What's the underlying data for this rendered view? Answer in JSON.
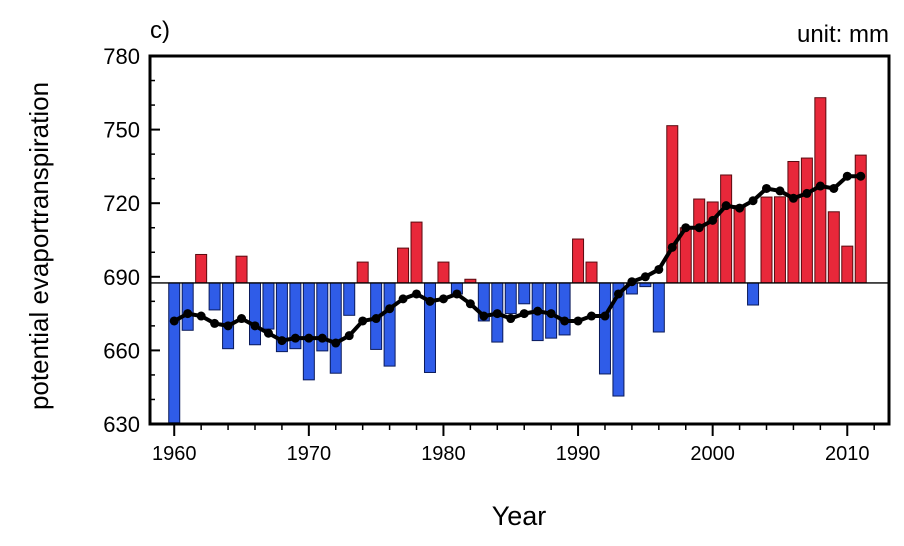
{
  "chart_data": {
    "type": "bar",
    "panel_label": "c)",
    "unit_label": "unit: mm",
    "xlabel": "Year",
    "ylabel": "potential evaportranspiration",
    "xlim": [
      1958.2,
      2013.1
    ],
    "ylim": [
      630,
      780
    ],
    "yticks": [
      630,
      660,
      690,
      720,
      750,
      780
    ],
    "xticks": [
      1960,
      1970,
      1980,
      1990,
      2000,
      2010
    ],
    "grid": false,
    "baseline": 687.5,
    "above_color": "#e8283a",
    "below_color": "#2f5ce8",
    "years": [
      1960,
      1961,
      1962,
      1963,
      1964,
      1965,
      1966,
      1967,
      1968,
      1969,
      1970,
      1971,
      1972,
      1973,
      1974,
      1975,
      1976,
      1977,
      1978,
      1979,
      1980,
      1981,
      1982,
      1983,
      1984,
      1985,
      1986,
      1987,
      1988,
      1989,
      1990,
      1991,
      1992,
      1993,
      1994,
      1995,
      1996,
      1997,
      1998,
      1999,
      2000,
      2001,
      2002,
      2003,
      2004,
      2005,
      2006,
      2007,
      2008,
      2009,
      2010,
      2011
    ],
    "values": [
      630.5,
      668.2,
      699.1,
      676.5,
      660.7,
      698.4,
      662.3,
      668.7,
      659.5,
      660.7,
      648,
      659.8,
      650.7,
      674.3,
      696,
      660.4,
      653.6,
      701.7,
      712.3,
      651,
      696,
      683,
      689,
      672,
      663.4,
      675,
      679,
      664,
      665,
      666.3,
      705.4,
      696,
      650.4,
      641.4,
      683,
      686,
      667.5,
      751.6,
      710,
      721.7,
      720.5,
      731.5,
      719,
      678.5,
      722.5,
      722.6,
      737,
      738.4,
      763,
      716.5,
      702.5,
      739.6
    ],
    "smoothed": [
      672,
      675,
      674,
      671,
      670,
      673,
      670,
      667,
      664,
      665,
      665,
      665,
      663,
      666,
      672,
      673,
      677,
      681,
      683,
      680,
      681,
      683,
      679,
      674,
      675,
      673,
      675,
      676,
      675,
      672,
      672,
      674,
      674,
      683,
      688,
      690,
      693,
      702,
      710,
      710,
      713,
      719,
      718,
      721,
      726,
      725,
      722,
      724,
      727,
      726,
      731,
      731
    ]
  }
}
